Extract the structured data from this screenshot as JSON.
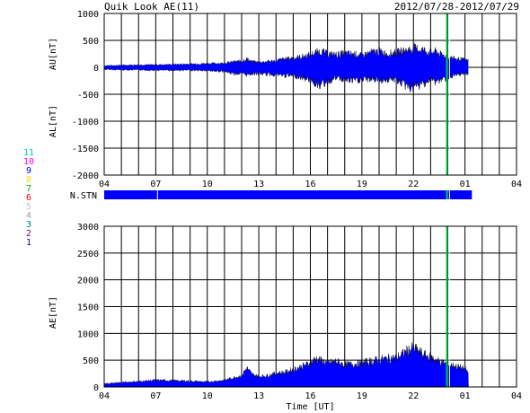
{
  "header": {
    "title": "Quik Look AE(11)",
    "date_range": "2012/07/28-2012/07/29"
  },
  "stations_legend": [
    {
      "label": "11",
      "color": "#00c8c8"
    },
    {
      "label": "10",
      "color": "#ff00ff"
    },
    {
      "label": "9",
      "color": "#0000ff"
    },
    {
      "label": "8",
      "color": "#ffd700"
    },
    {
      "label": "7",
      "color": "#00b000"
    },
    {
      "label": "6",
      "color": "#ff0000"
    },
    {
      "label": "5",
      "color": "#c8c8c8"
    },
    {
      "label": "4",
      "color": "#a0a0a0"
    },
    {
      "label": "3",
      "color": "#008080"
    },
    {
      "label": "2",
      "color": "#800080"
    },
    {
      "label": "1",
      "color": "#0000c0"
    }
  ],
  "colors": {
    "fill": "#0000ff",
    "marker": "#00cc44",
    "grid": "#000000",
    "bar_gap": "#ffffff"
  },
  "chart_data": [
    {
      "type": "area",
      "ylabel_upper": "AU[nT]",
      "ylabel_lower": "AL[nT]",
      "ylim": [
        -2000,
        1000
      ],
      "yticks": [
        1000,
        500,
        0,
        -500,
        -1000,
        -1500,
        -2000
      ],
      "xlim": [
        4,
        28
      ],
      "x_tick_labels": [
        "04",
        "07",
        "10",
        "13",
        "16",
        "19",
        "22",
        "01",
        "04"
      ],
      "grid": true,
      "data_end_hour": 25.2,
      "x": [
        4,
        5,
        6,
        7,
        8,
        9,
        10,
        11,
        11.5,
        12,
        12.3,
        12.6,
        13,
        13.5,
        14,
        14.5,
        15,
        15.5,
        16,
        16.3,
        16.6,
        17,
        17.5,
        18,
        18.5,
        19,
        19.5,
        20,
        20.5,
        21,
        21.3,
        21.6,
        22,
        22.5,
        23,
        23.3,
        23.6,
        24,
        24.5,
        25,
        25.2
      ],
      "series": [
        {
          "name": "AU",
          "values": [
            40,
            50,
            60,
            60,
            70,
            80,
            90,
            100,
            130,
            150,
            200,
            140,
            120,
            140,
            160,
            200,
            220,
            250,
            300,
            350,
            380,
            320,
            300,
            330,
            320,
            280,
            350,
            380,
            320,
            350,
            380,
            400,
            450,
            420,
            350,
            380,
            300,
            250,
            200,
            180,
            150
          ]
        },
        {
          "name": "AL",
          "values": [
            -50,
            -60,
            -60,
            -70,
            -70,
            -70,
            -80,
            -100,
            -150,
            -150,
            -180,
            -150,
            -150,
            -170,
            -170,
            -200,
            -200,
            -250,
            -300,
            -380,
            -420,
            -350,
            -250,
            -300,
            -320,
            -300,
            -280,
            -300,
            -300,
            -300,
            -380,
            -450,
            -500,
            -400,
            -300,
            -350,
            -300,
            -250,
            -200,
            -150,
            -150
          ]
        }
      ]
    },
    {
      "type": "bar",
      "label": "N.STN",
      "xlim": [
        4,
        28
      ],
      "bar_start_hour": 4,
      "bar_end_hour": 25.4,
      "gaps_hours": [
        7.1
      ],
      "markers_hours": [
        23.95,
        24.1
      ]
    },
    {
      "type": "area",
      "ylabel": "AE[nT]",
      "xlabel": "Time [UT]",
      "ylim": [
        0,
        3000
      ],
      "yticks": [
        3000,
        2500,
        2000,
        1500,
        1000,
        500,
        0
      ],
      "xlim": [
        4,
        28
      ],
      "x_tick_labels": [
        "04",
        "07",
        "10",
        "13",
        "16",
        "19",
        "22",
        "01",
        "04"
      ],
      "grid": true,
      "data_end_hour": 25.2,
      "x": [
        4,
        5,
        6,
        7,
        8,
        9,
        10,
        11,
        11.5,
        12,
        12.3,
        12.6,
        13,
        13.5,
        14,
        14.5,
        15,
        15.5,
        16,
        16.3,
        16.6,
        17,
        17.5,
        18,
        18.5,
        19,
        19.5,
        20,
        20.5,
        21,
        21.3,
        21.6,
        22,
        22.3,
        22.6,
        23,
        23.3,
        23.6,
        24,
        24.5,
        25,
        25.2
      ],
      "series": [
        {
          "name": "AE",
          "values": [
            70,
            100,
            120,
            150,
            140,
            130,
            110,
            150,
            200,
            250,
            420,
            280,
            230,
            250,
            300,
            320,
            380,
            450,
            520,
            620,
            580,
            520,
            560,
            480,
            500,
            520,
            560,
            600,
            620,
            640,
            700,
            780,
            850,
            780,
            700,
            650,
            600,
            540,
            500,
            450,
            400,
            300
          ]
        }
      ],
      "markers_hours": [
        23.95,
        24.1
      ]
    }
  ]
}
